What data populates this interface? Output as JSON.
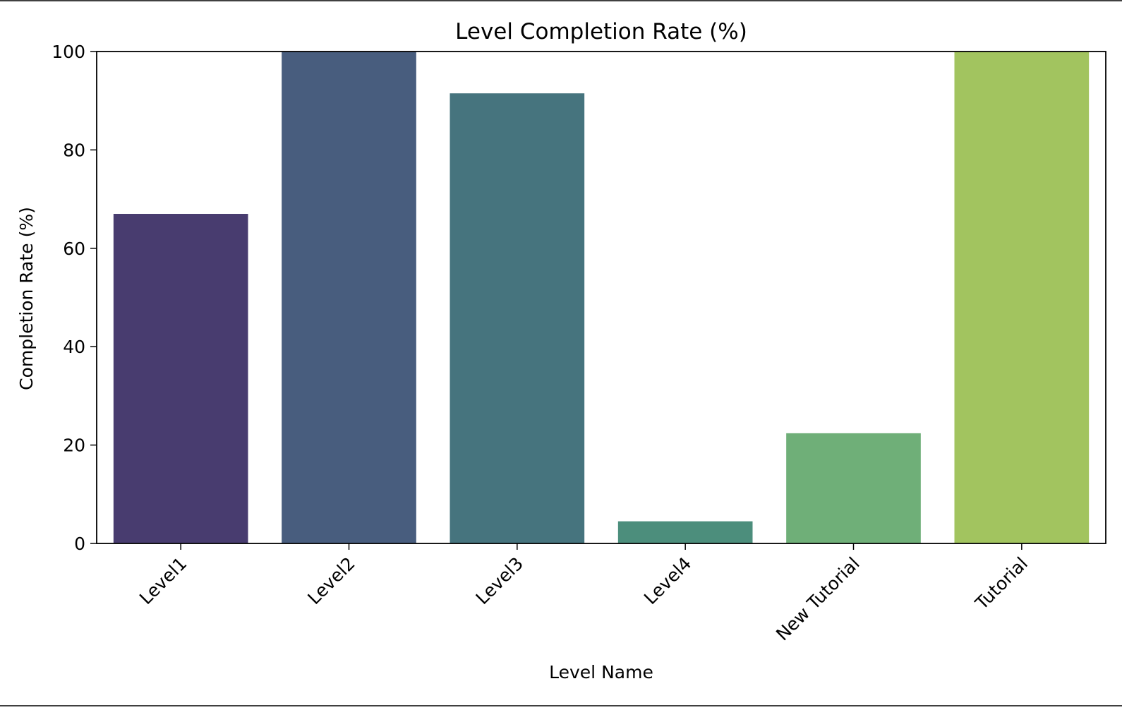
{
  "chart_data": {
    "type": "bar",
    "title": "Level Completion Rate (%)",
    "xlabel": "Level Name",
    "ylabel": "Completion Rate (%)",
    "categories": [
      "Level1",
      "Level2",
      "Level3",
      "Level4",
      "New Tutorial",
      "Tutorial"
    ],
    "values": [
      67.0,
      100.0,
      91.5,
      4.5,
      22.4,
      100.0
    ],
    "colors": [
      "#483C6F",
      "#485D7E",
      "#46747E",
      "#4C8E7C",
      "#6FAF78",
      "#A2C45F"
    ],
    "ylim": [
      0,
      100
    ],
    "yticks": [
      0,
      20,
      40,
      60,
      80,
      100
    ],
    "grid": false,
    "legend": "none"
  }
}
